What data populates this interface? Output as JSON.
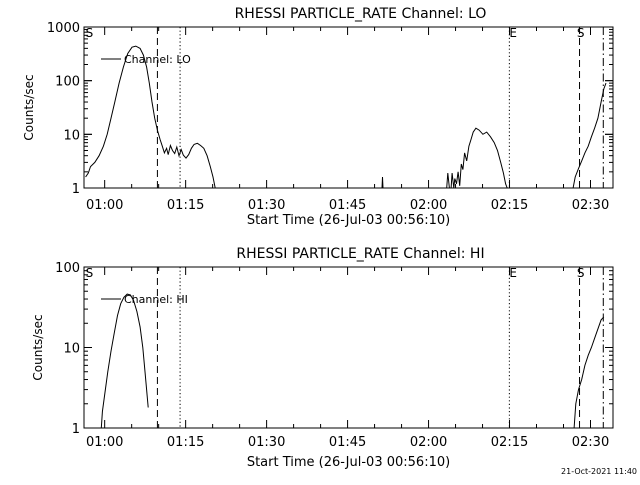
{
  "colors": {
    "background": "#ffffff",
    "ink": "#000000"
  },
  "footer_timestamp": "21-Oct-2021 11:40",
  "chart_data": [
    {
      "type": "line",
      "title": "RHESSI PARTICLE_RATE Channel: LO",
      "xlabel": "Start Time (26-Jul-03 00:56:10)",
      "ylabel": "Counts/sec",
      "yscale": "log",
      "ylim": [
        1,
        1000
      ],
      "xlim_minutes": [
        0,
        98
      ],
      "x_ticks": [
        {
          "minute": 3.83,
          "label": "01:00"
        },
        {
          "minute": 18.83,
          "label": "01:15"
        },
        {
          "minute": 33.83,
          "label": "01:30"
        },
        {
          "minute": 48.83,
          "label": "01:45"
        },
        {
          "minute": 63.83,
          "label": "02:00"
        },
        {
          "minute": 78.83,
          "label": "02:15"
        },
        {
          "minute": 93.83,
          "label": "02:30"
        }
      ],
      "y_ticks": [
        {
          "value": 1,
          "label": "1"
        },
        {
          "value": 10,
          "label": "10"
        },
        {
          "value": 100,
          "label": "100"
        },
        {
          "value": 1000,
          "label": "1000"
        }
      ],
      "legend": "Channel: LO",
      "markers": [
        {
          "minute": 0.3,
          "label": "S"
        },
        {
          "minute": 78.8,
          "label": "E"
        },
        {
          "minute": 91.3,
          "label": "S"
        }
      ],
      "vlines": [
        {
          "minute": 13.6,
          "style": "dashed"
        },
        {
          "minute": 17.8,
          "style": "dotted"
        },
        {
          "minute": 78.8,
          "style": "dotted"
        },
        {
          "minute": 91.8,
          "style": "dashed"
        },
        {
          "minute": 96.2,
          "style": "dashdot"
        }
      ],
      "series": [
        {
          "name": "LO",
          "points": [
            [
              0.3,
              1.6
            ],
            [
              0.8,
              1.9
            ],
            [
              1.2,
              2.5
            ],
            [
              2.0,
              3.0
            ],
            [
              2.8,
              4.0
            ],
            [
              3.6,
              6.0
            ],
            [
              4.3,
              10
            ],
            [
              5.0,
              20
            ],
            [
              5.7,
              40
            ],
            [
              6.5,
              90
            ],
            [
              7.3,
              180
            ],
            [
              8.1,
              320
            ],
            [
              8.9,
              420
            ],
            [
              9.6,
              440
            ],
            [
              10.4,
              400
            ],
            [
              11.0,
              300
            ],
            [
              11.6,
              180
            ],
            [
              12.1,
              90
            ],
            [
              12.6,
              40
            ],
            [
              13.1,
              20
            ],
            [
              13.6,
              12
            ],
            [
              14.1,
              8
            ],
            [
              14.5,
              6
            ],
            [
              14.9,
              4.5
            ],
            [
              15.3,
              5.5
            ],
            [
              15.6,
              4.2
            ],
            [
              16.0,
              6.2
            ],
            [
              16.4,
              5.0
            ],
            [
              16.8,
              4.4
            ],
            [
              17.2,
              5.8
            ],
            [
              17.6,
              4.0
            ],
            [
              18.0,
              5.2
            ],
            [
              18.4,
              4.1
            ],
            [
              18.9,
              3.6
            ],
            [
              19.4,
              4.2
            ],
            [
              19.9,
              5.5
            ],
            [
              20.4,
              6.5
            ],
            [
              21.0,
              6.8
            ],
            [
              21.6,
              6.2
            ],
            [
              22.2,
              5.5
            ],
            [
              22.8,
              4.0
            ],
            [
              23.4,
              2.5
            ],
            [
              23.9,
              1.6
            ],
            [
              24.3,
              1.0
            ]
          ]
        },
        {
          "name": "LO",
          "points": [
            [
              55.2,
              1.0
            ],
            [
              55.3,
              1.6
            ],
            [
              55.4,
              1.0
            ]
          ]
        },
        {
          "name": "LO",
          "points": [
            [
              67.2,
              1.0
            ],
            [
              67.4,
              1.9
            ],
            [
              67.7,
              1.0
            ],
            [
              68.0,
              1.0
            ],
            [
              68.2,
              1.9
            ],
            [
              68.5,
              1.0
            ],
            [
              68.7,
              1.5
            ],
            [
              69.0,
              1.2
            ],
            [
              69.3,
              2.0
            ],
            [
              69.6,
              1.1
            ],
            [
              69.9,
              2.8
            ],
            [
              70.2,
              2.2
            ],
            [
              70.5,
              4.5
            ],
            [
              70.9,
              3.2
            ],
            [
              71.3,
              6.0
            ],
            [
              71.7,
              8.0
            ],
            [
              72.1,
              11
            ],
            [
              72.6,
              13
            ],
            [
              73.2,
              12
            ],
            [
              73.9,
              10
            ],
            [
              74.6,
              11
            ],
            [
              75.3,
              9.0
            ],
            [
              76.0,
              7.0
            ],
            [
              76.6,
              5.0
            ],
            [
              77.2,
              3.0
            ],
            [
              77.7,
              1.9
            ],
            [
              78.1,
              1.2
            ],
            [
              78.4,
              1.0
            ]
          ]
        },
        {
          "name": "LO",
          "points": [
            [
              90.6,
              1.0
            ],
            [
              91.0,
              1.6
            ],
            [
              91.6,
              2.3
            ],
            [
              92.2,
              3.2
            ],
            [
              92.8,
              4.5
            ],
            [
              93.4,
              6.0
            ],
            [
              94.0,
              9.0
            ],
            [
              94.6,
              13
            ],
            [
              95.2,
              20
            ],
            [
              95.8,
              40
            ],
            [
              96.3,
              70
            ],
            [
              96.7,
              90
            ]
          ]
        }
      ]
    },
    {
      "type": "line",
      "title": "RHESSI PARTICLE_RATE Channel: HI",
      "xlabel": "Start Time (26-Jul-03 00:56:10)",
      "ylabel": "Counts/sec",
      "yscale": "log",
      "ylim": [
        1,
        100
      ],
      "xlim_minutes": [
        0,
        98
      ],
      "x_ticks": [
        {
          "minute": 3.83,
          "label": "01:00"
        },
        {
          "minute": 18.83,
          "label": "01:15"
        },
        {
          "minute": 33.83,
          "label": "01:30"
        },
        {
          "minute": 48.83,
          "label": "01:45"
        },
        {
          "minute": 63.83,
          "label": "02:00"
        },
        {
          "minute": 78.83,
          "label": "02:15"
        },
        {
          "minute": 93.83,
          "label": "02:30"
        }
      ],
      "y_ticks": [
        {
          "value": 1,
          "label": "1"
        },
        {
          "value": 10,
          "label": "10"
        },
        {
          "value": 100,
          "label": "100"
        }
      ],
      "legend": "Channel: HI",
      "markers": [
        {
          "minute": 0.3,
          "label": "S"
        },
        {
          "minute": 78.8,
          "label": "E"
        },
        {
          "minute": 91.3,
          "label": "S"
        }
      ],
      "vlines": [
        {
          "minute": 13.6,
          "style": "dashed"
        },
        {
          "minute": 17.8,
          "style": "dotted"
        },
        {
          "minute": 78.8,
          "style": "dotted"
        },
        {
          "minute": 91.8,
          "style": "dashed"
        },
        {
          "minute": 96.2,
          "style": "dashdot"
        }
      ],
      "series": [
        {
          "name": "HI",
          "points": [
            [
              3.2,
              1.0
            ],
            [
              3.4,
              1.6
            ],
            [
              3.8,
              2.5
            ],
            [
              4.4,
              5.0
            ],
            [
              5.0,
              9.0
            ],
            [
              5.6,
              15
            ],
            [
              6.2,
              25
            ],
            [
              6.8,
              35
            ],
            [
              7.4,
              42
            ],
            [
              8.0,
              46
            ],
            [
              8.6,
              45
            ],
            [
              9.2,
              38
            ],
            [
              9.8,
              28
            ],
            [
              10.4,
              18
            ],
            [
              10.9,
              10
            ],
            [
              11.3,
              5.0
            ],
            [
              11.6,
              3.0
            ],
            [
              11.9,
              1.8
            ]
          ]
        },
        {
          "name": "HI",
          "points": [
            [
              90.8,
              1.0
            ],
            [
              91.1,
              2.0
            ],
            [
              91.6,
              3.0
            ],
            [
              92.2,
              4.0
            ],
            [
              92.8,
              6.0
            ],
            [
              93.4,
              8.0
            ],
            [
              94.0,
              10
            ],
            [
              94.6,
              13
            ],
            [
              95.2,
              17
            ],
            [
              95.8,
              22
            ],
            [
              96.3,
              24
            ]
          ]
        }
      ]
    }
  ]
}
